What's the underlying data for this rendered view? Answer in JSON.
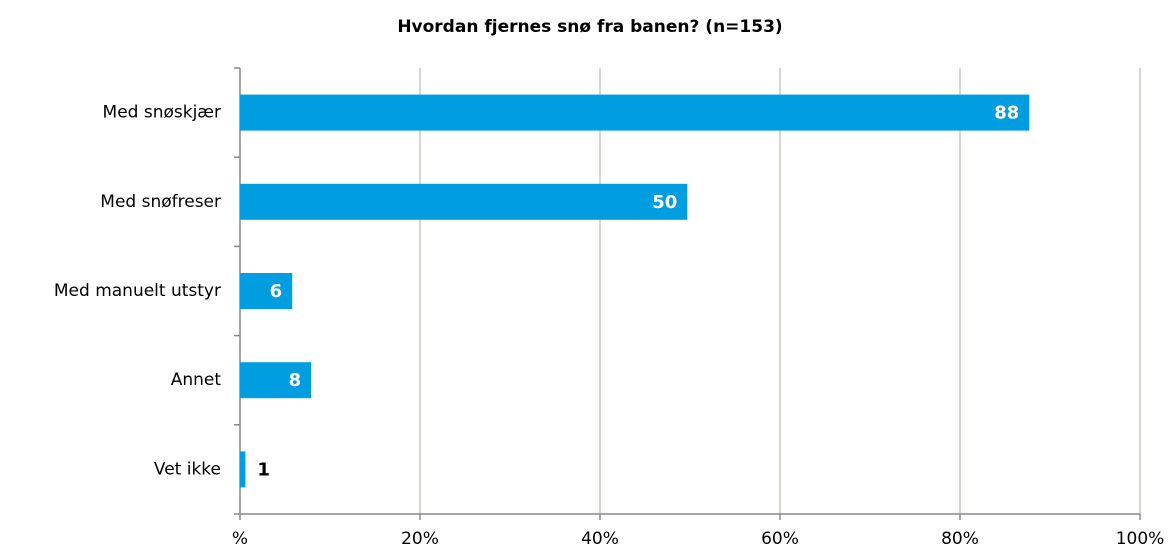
{
  "chart_data": {
    "type": "bar",
    "orientation": "horizontal",
    "title": "Hvordan fjernes snø fra banen? (n=153)",
    "categories": [
      "Med snøskjær",
      "Med snøfreser",
      "Med manuelt utstyr",
      "Annet",
      "Vet ikke"
    ],
    "values": [
      87.7,
      49.7,
      5.8,
      7.9,
      0.6
    ],
    "value_labels": [
      "88",
      "50",
      "6",
      "8",
      "1"
    ],
    "color": "#009ee0",
    "xlim": [
      0,
      100
    ],
    "xticks": [
      {
        "value": 0,
        "label": "%"
      },
      {
        "value": 20,
        "label": "20%"
      },
      {
        "value": 40,
        "label": "40%"
      },
      {
        "value": 60,
        "label": "60%"
      },
      {
        "value": 80,
        "label": "80%"
      },
      {
        "value": 100,
        "label": "100%"
      }
    ],
    "grid": true
  }
}
